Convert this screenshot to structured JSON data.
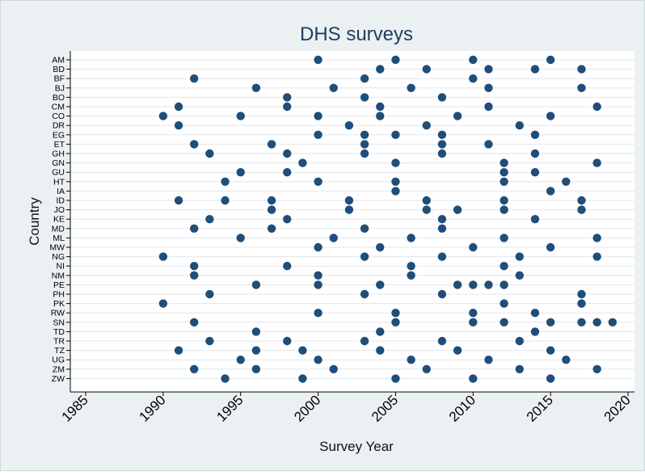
{
  "chart_data": {
    "type": "scatter",
    "title": "DHS surveys",
    "xlabel": "Survey Year",
    "ylabel": "Country",
    "xlim": [
      1985,
      2020
    ],
    "xticks": [
      1985,
      1990,
      1995,
      2000,
      2005,
      2010,
      2015,
      2020
    ],
    "grid": "horizontal",
    "colors": {
      "marker": "#1f4e79",
      "background": "#ebf0f3",
      "plot_area": "#ffffff",
      "grid": "#e1e7ec",
      "title": "#1f3f60"
    },
    "categories": [
      "AM",
      "BD",
      "BF",
      "BJ",
      "BO",
      "CM",
      "CO",
      "DR",
      "EG",
      "ET",
      "GH",
      "GN",
      "GU",
      "HT",
      "IA",
      "ID",
      "JO",
      "KE",
      "MD",
      "ML",
      "MW",
      "NG",
      "NI",
      "NM",
      "PE",
      "PH",
      "PK",
      "RW",
      "SN",
      "TD",
      "TR",
      "TZ",
      "UG",
      "ZM",
      "ZW"
    ],
    "points": {
      "AM": [
        2000,
        2005,
        2010,
        2015
      ],
      "BD": [
        2004,
        2007,
        2011,
        2014,
        2017
      ],
      "BF": [
        1992,
        2003,
        2010
      ],
      "BJ": [
        1996,
        2001,
        2006,
        2011,
        2017
      ],
      "BO": [
        1998,
        2003,
        2008
      ],
      "CM": [
        1991,
        1998,
        2004,
        2011,
        2018
      ],
      "CO": [
        1990,
        1995,
        2000,
        2004,
        2009,
        2015
      ],
      "DR": [
        1991,
        2002,
        2007,
        2013
      ],
      "EG": [
        2000,
        2003,
        2005,
        2008,
        2014
      ],
      "ET": [
        1992,
        1997,
        2003,
        2008,
        2011
      ],
      "GH": [
        1993,
        1998,
        2003,
        2008,
        2014
      ],
      "GN": [
        1999,
        2005,
        2012,
        2018
      ],
      "GU": [
        1995,
        1998,
        2012,
        2014
      ],
      "HT": [
        1994,
        2000,
        2005,
        2012,
        2016
      ],
      "IA": [
        2005,
        2015
      ],
      "ID": [
        1991,
        1994,
        1997,
        2002,
        2007,
        2012,
        2017
      ],
      "JO": [
        1997,
        2002,
        2007,
        2009,
        2012,
        2017
      ],
      "KE": [
        1993,
        1998,
        2008,
        2014
      ],
      "MD": [
        1992,
        1997,
        2003,
        2008
      ],
      "ML": [
        1995,
        2001,
        2006,
        2012,
        2018
      ],
      "MW": [
        2000,
        2004,
        2010,
        2015
      ],
      "NG": [
        1990,
        2003,
        2008,
        2013,
        2018
      ],
      "NI": [
        1992,
        1998,
        2006,
        2012
      ],
      "NM": [
        1992,
        2000,
        2006,
        2013
      ],
      "PE": [
        1996,
        2000,
        2004,
        2009,
        2010,
        2011,
        2012
      ],
      "PH": [
        1993,
        2003,
        2008,
        2017
      ],
      "PK": [
        1990,
        2012,
        2017
      ],
      "RW": [
        2000,
        2005,
        2010,
        2014
      ],
      "SN": [
        1992,
        2005,
        2010,
        2012,
        2015,
        2017,
        2018,
        2019
      ],
      "TD": [
        1996,
        2004,
        2014
      ],
      "TR": [
        1993,
        1998,
        2003,
        2008,
        2013
      ],
      "TZ": [
        1991,
        1996,
        1999,
        2004,
        2009,
        2015
      ],
      "UG": [
        1995,
        2000,
        2006,
        2011,
        2016
      ],
      "ZM": [
        1992,
        1996,
        2001,
        2007,
        2013,
        2018
      ],
      "ZW": [
        1994,
        1999,
        2005,
        2010,
        2015
      ]
    }
  }
}
